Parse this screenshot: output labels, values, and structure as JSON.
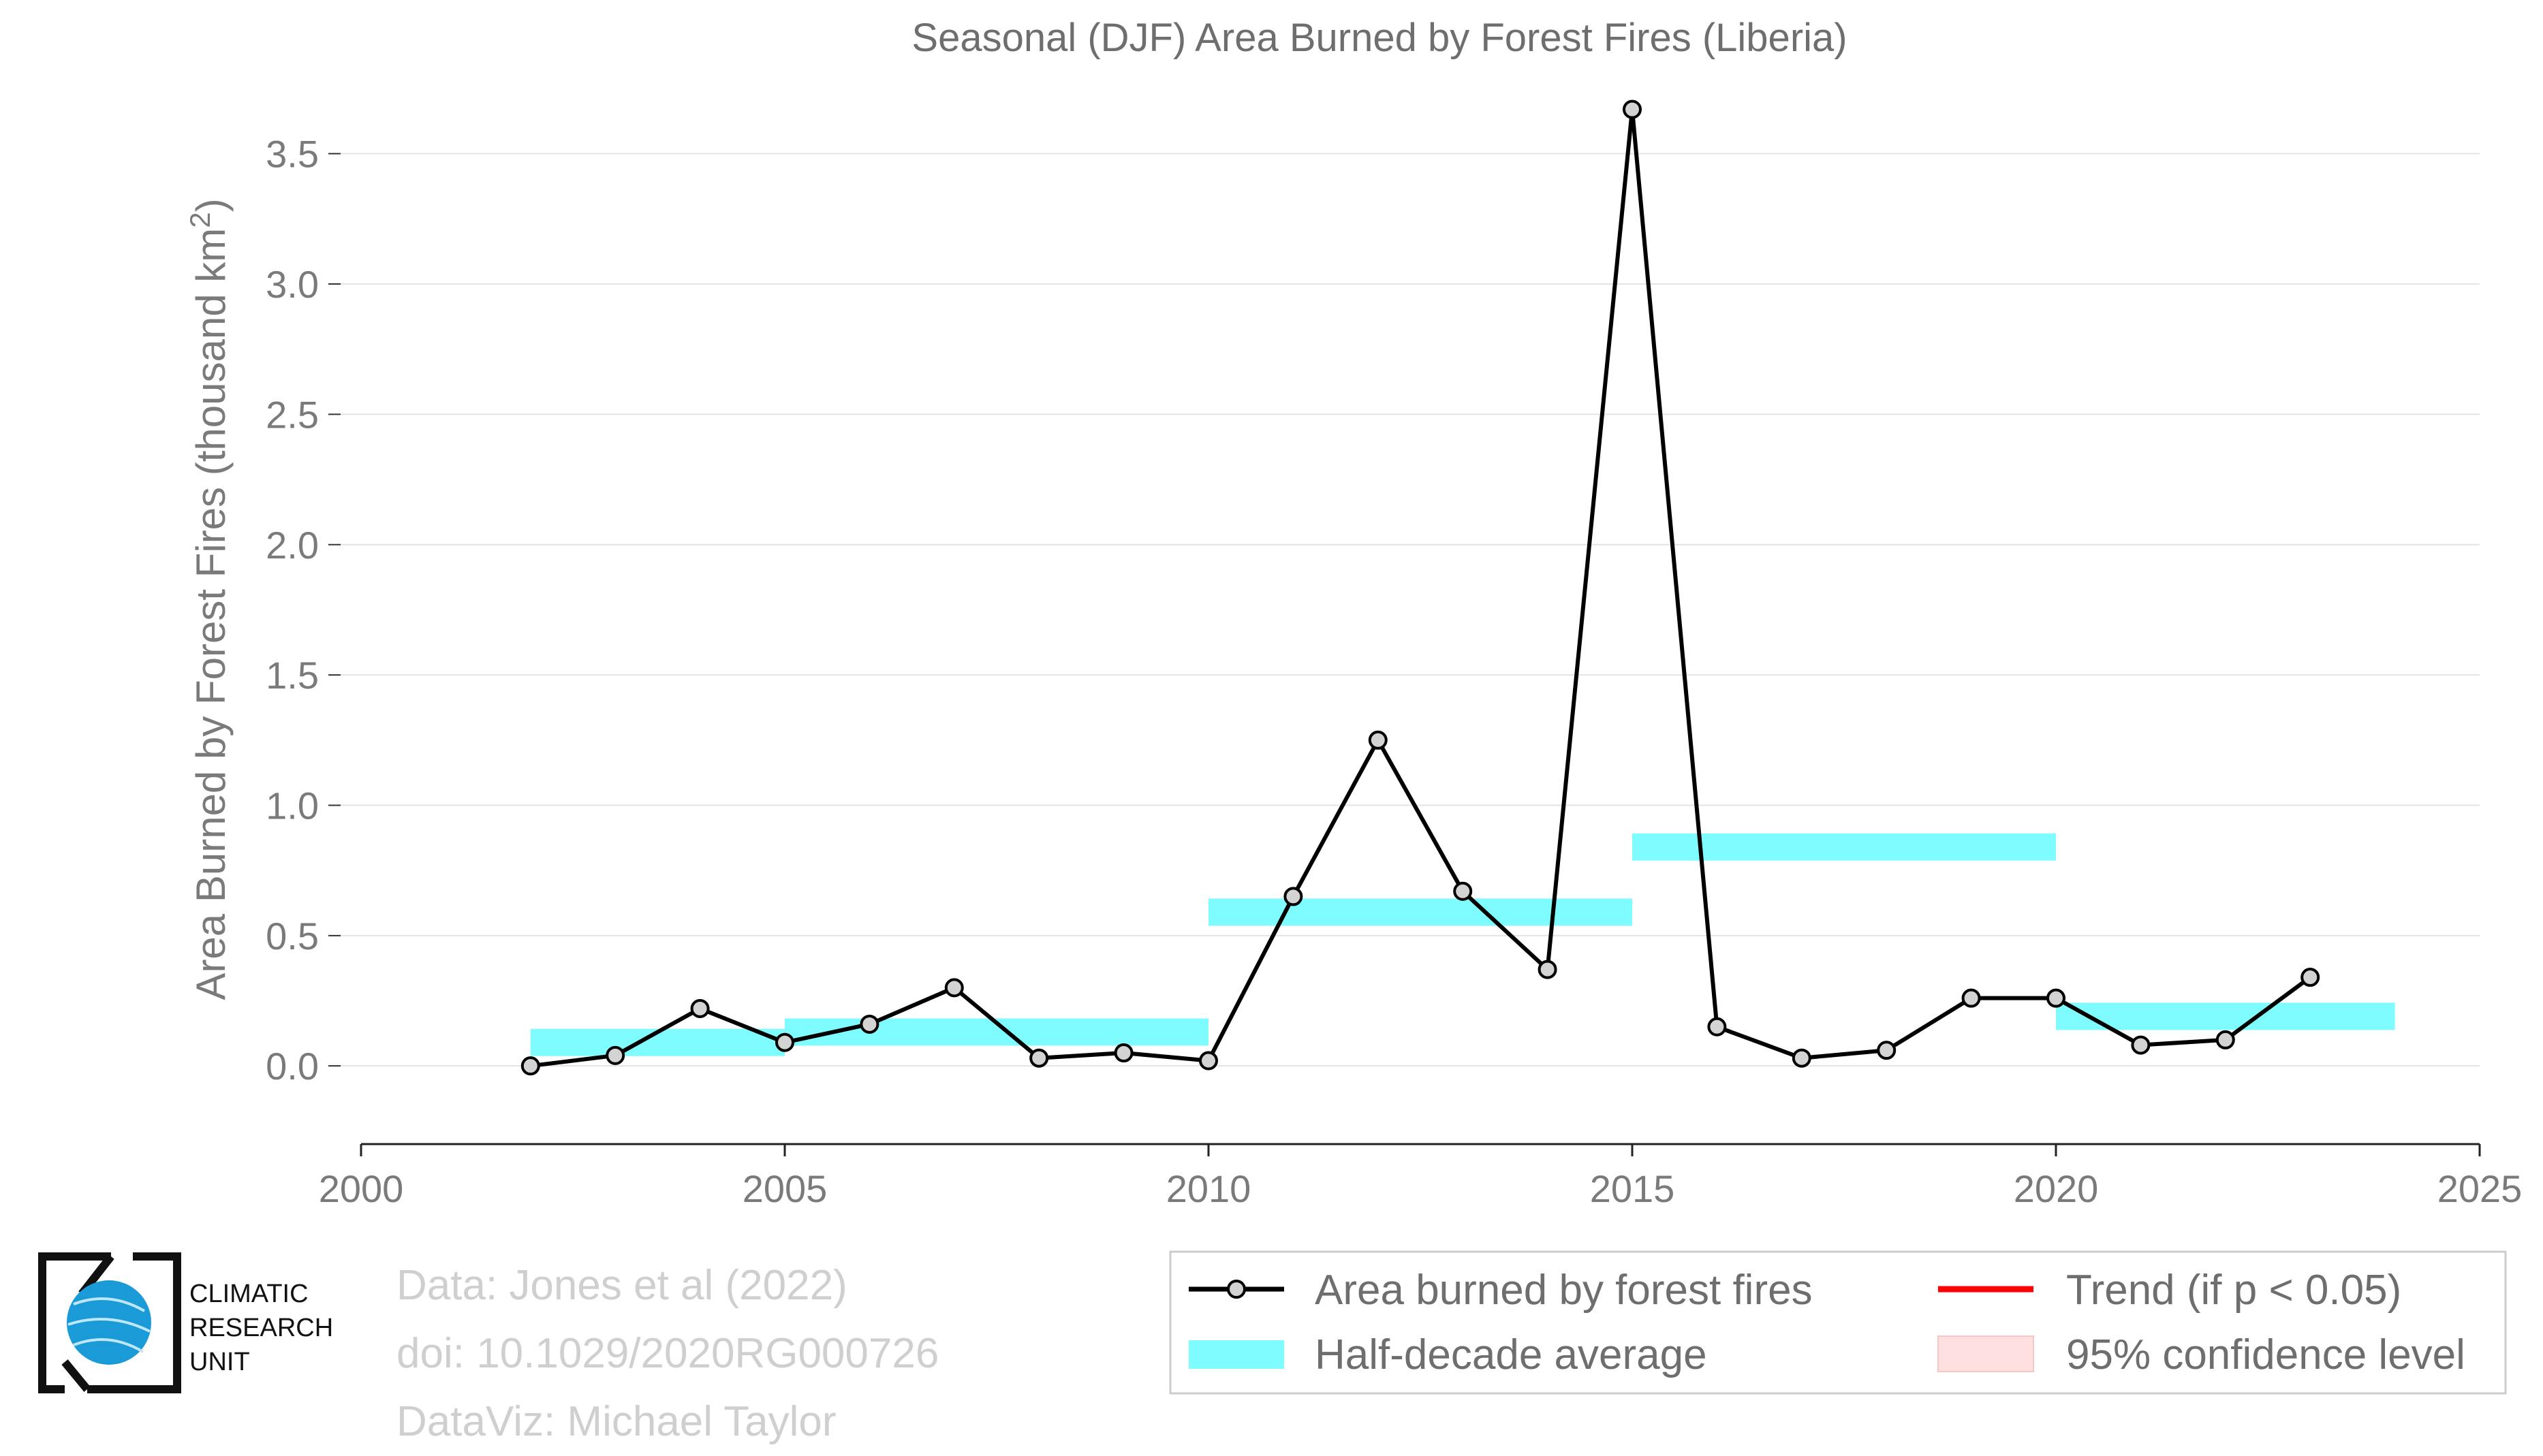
{
  "chart_data": {
    "type": "line",
    "title": "Seasonal (DJF) Area Burned by Forest Fires (Liberia)",
    "ylabel_main": "Area Burned by Forest Fires (thousand km",
    "ylabel_sup": "2",
    "ylabel_close": ")",
    "xlim": [
      2000,
      2025
    ],
    "ylim": [
      -0.3,
      3.75
    ],
    "xticks": [
      2000,
      2005,
      2010,
      2015,
      2020,
      2025
    ],
    "yticks": [
      0.0,
      0.5,
      1.0,
      1.5,
      2.0,
      2.5,
      3.0,
      3.5
    ],
    "ytick_labels": [
      "0.0",
      "0.5",
      "1.0",
      "1.5",
      "2.0",
      "2.5",
      "3.0",
      "3.5"
    ],
    "grid": true,
    "series": [
      {
        "name": "Area burned by forest fires",
        "color": "#000000",
        "marker_fill": "#d3d3d3",
        "x": [
          2002,
          2003,
          2004,
          2005,
          2006,
          2007,
          2008,
          2009,
          2010,
          2011,
          2012,
          2013,
          2014,
          2015,
          2016,
          2017,
          2018,
          2019,
          2020,
          2021,
          2022,
          2023
        ],
        "y": [
          0.0,
          0.04,
          0.22,
          0.09,
          0.16,
          0.3,
          0.03,
          0.05,
          0.02,
          0.65,
          1.25,
          0.67,
          0.37,
          3.67,
          0.15,
          0.03,
          0.06,
          0.26,
          0.26,
          0.08,
          0.1,
          0.34
        ]
      }
    ],
    "half_decade_average": {
      "name": "Half-decade average",
      "color": "#7ffcff",
      "segments": [
        {
          "x0": 2002,
          "x1": 2005,
          "y": 0.09
        },
        {
          "x0": 2005,
          "x1": 2010,
          "y": 0.13
        },
        {
          "x0": 2010,
          "x1": 2015,
          "y": 0.59
        },
        {
          "x0": 2015,
          "x1": 2020,
          "y": 0.84
        },
        {
          "x0": 2020,
          "x1": 2024,
          "y": 0.19
        }
      ]
    },
    "legend": {
      "placement": "bottom-right",
      "entries": [
        {
          "label": "Area burned by forest fires",
          "kind": "line-marker",
          "color": "#000000"
        },
        {
          "label": "Trend (if p < 0.05)",
          "kind": "line",
          "color": "#ff0000"
        },
        {
          "label": "Half-decade average",
          "kind": "patch",
          "color": "#7ffcff"
        },
        {
          "label": "95% confidence level",
          "kind": "patch",
          "color": "#ffe0e0"
        }
      ]
    }
  },
  "credits": {
    "line1": "Data: Jones et al (2022)",
    "line2": "doi: 10.1029/2020RG000726",
    "line3": "DataViz: Michael Taylor"
  },
  "logo": {
    "line1": "CLIMATIC",
    "line2": "RESEARCH",
    "line3": "UNIT",
    "icon": "globe-icon",
    "globe_color": "#1a9bd7"
  }
}
